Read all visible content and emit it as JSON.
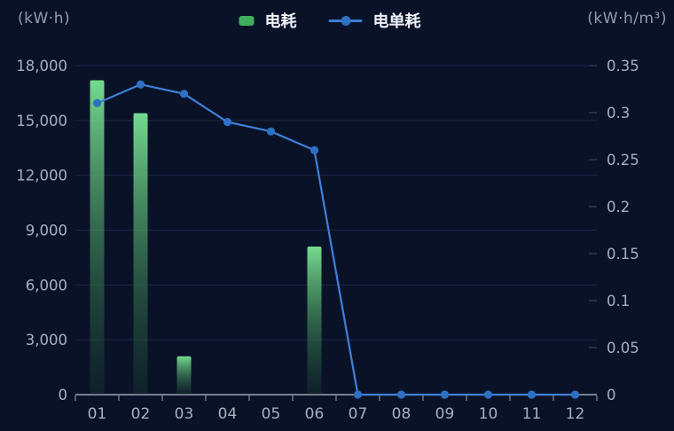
{
  "units": {
    "left": "(kW·h)",
    "right": "(kW·h/m³)"
  },
  "legend": {
    "items": [
      {
        "label": "电耗",
        "type": "bar"
      },
      {
        "label": "电单耗",
        "type": "line"
      }
    ]
  },
  "chart_data": {
    "type": "bar+line",
    "categories": [
      "01",
      "02",
      "03",
      "04",
      "05",
      "06",
      "07",
      "08",
      "09",
      "10",
      "11",
      "12"
    ],
    "series": [
      {
        "name": "电耗",
        "type": "bar",
        "y_axis": "left",
        "values": [
          17200,
          15400,
          2100,
          0,
          0,
          8100,
          0,
          0,
          0,
          0,
          0,
          0
        ]
      },
      {
        "name": "电单耗",
        "type": "line",
        "y_axis": "right",
        "values": [
          0.31,
          0.33,
          0.32,
          0.29,
          0.28,
          0.26,
          0,
          0,
          0,
          0,
          0,
          0
        ]
      }
    ],
    "left_axis": {
      "label": "(kW·h)",
      "min": 0,
      "max": 18000,
      "tick_labels": [
        "18,000",
        "15,000",
        "12,000",
        "9,000",
        "6,000",
        "3,000",
        "0"
      ]
    },
    "right_axis": {
      "label": "(kW·h/m³)",
      "min": 0,
      "max": 0.35,
      "tick_labels": [
        "0.35",
        "0.3",
        "0.25",
        "0.2",
        "0.15",
        "0.1",
        "0.05",
        "0"
      ]
    },
    "grid": true,
    "legend_position": "top-center"
  },
  "colors": {
    "background": "#0a1228",
    "bar_gradient_top": "#74db8f",
    "bar_gradient_bottom": "rgba(32,86,52,0.22)",
    "line": "#3f80d8",
    "dot": "#2e70c4",
    "grid_line": "rgba(116,156,210,0.17)",
    "axis_line": "#9aa5b5",
    "right_tick": "#3a4f73",
    "tick_label": "#a6b0c0",
    "unit_label": "#929cb0",
    "legend_text": "#eef1f6",
    "legend_bar_swatch": "#41ae5e"
  }
}
